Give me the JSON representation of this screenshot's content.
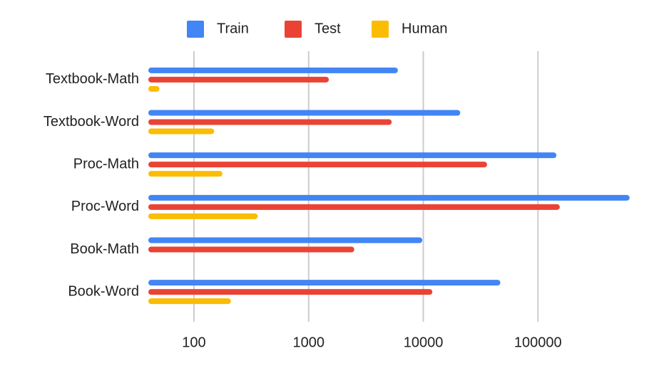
{
  "chart_data": {
    "type": "bar",
    "orientation": "horizontal",
    "log_scale": true,
    "grid": true,
    "legend": "top",
    "categories": [
      "Textbook-Math",
      "Textbook-Word",
      "Proc-Math",
      "Proc-Word",
      "Book-Math",
      "Book-Word"
    ],
    "series": [
      {
        "name": "Train",
        "color": "#4285f4",
        "values": [
          6000,
          21000,
          145000,
          630000,
          9800,
          47000
        ]
      },
      {
        "name": "Test",
        "color": "#ea4335",
        "values": [
          1500,
          5300,
          36000,
          155000,
          2500,
          12000
        ]
      },
      {
        "name": "Human",
        "color": "#fbbc04",
        "values": [
          50,
          150,
          177,
          360,
          null,
          210
        ]
      }
    ],
    "xlim": [
      40,
      650000
    ],
    "xticks": [
      100,
      1000,
      10000,
      100000
    ]
  }
}
